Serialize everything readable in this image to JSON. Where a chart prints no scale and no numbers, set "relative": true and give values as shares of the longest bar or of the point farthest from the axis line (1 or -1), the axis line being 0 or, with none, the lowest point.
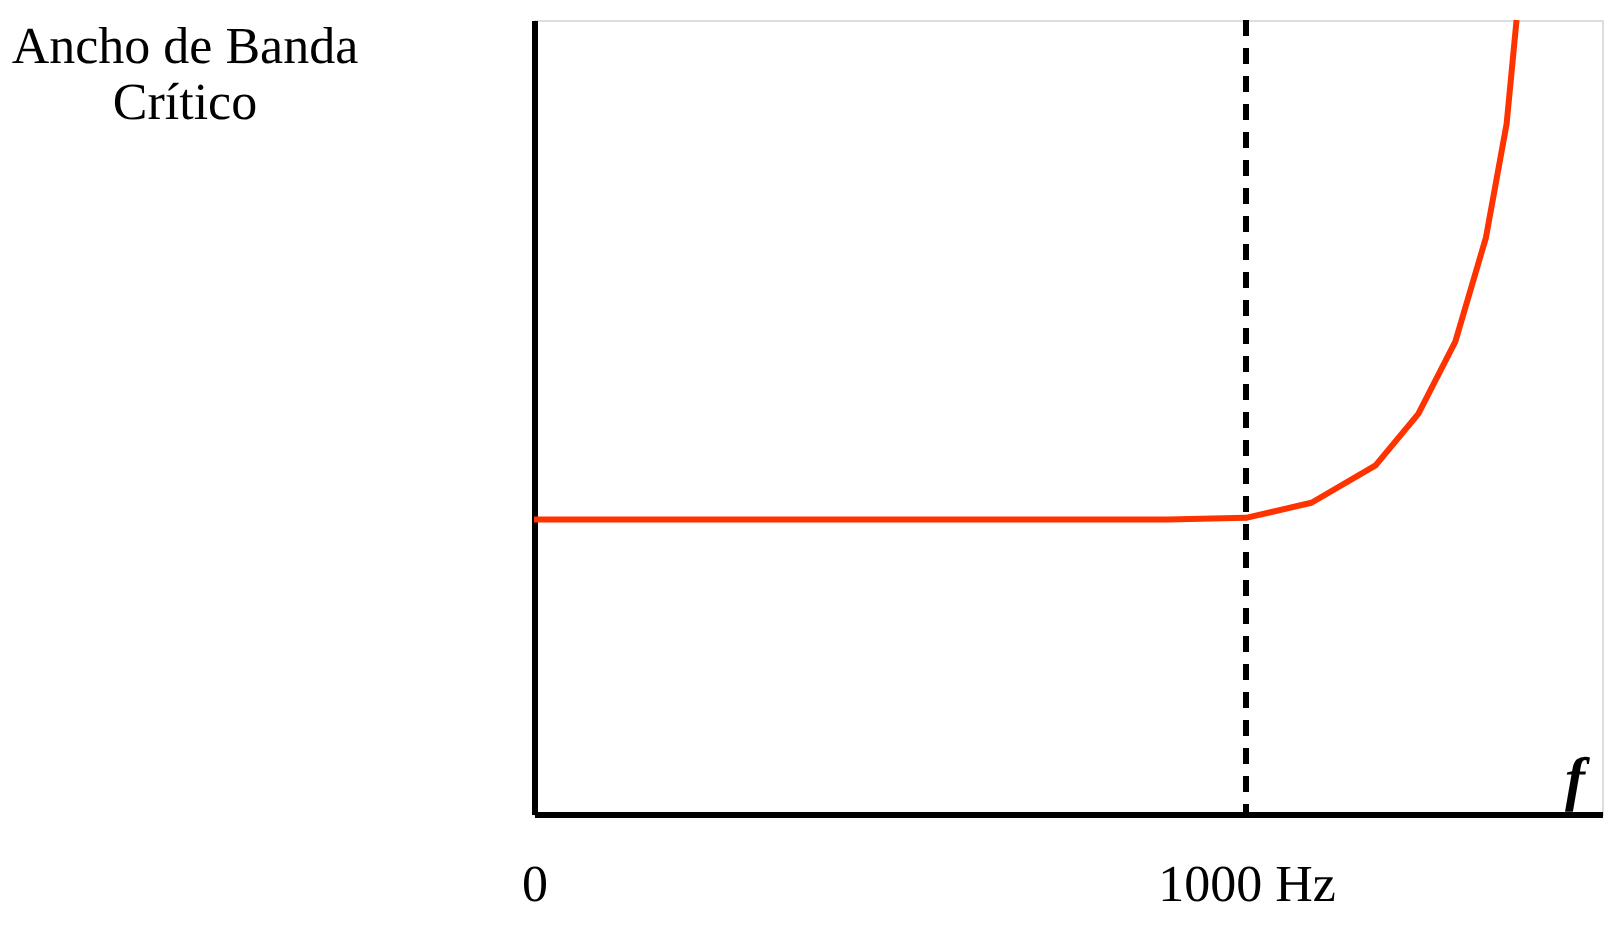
{
  "chart_data": {
    "type": "line",
    "relative": true,
    "xlabel": "f",
    "ylabel": "Ancho de Banda\nCrítico",
    "x": [
      0,
      890,
      1000,
      1092,
      1182,
      1242,
      1294,
      1337,
      1366,
      1380
    ],
    "series": [
      {
        "color": "#ff3300",
        "values": [
          0.371,
          0.371,
          0.373,
          0.392,
          0.439,
          0.504,
          0.595,
          0.726,
          0.869,
          1
        ]
      }
    ],
    "xlim": [
      0,
      1500
    ],
    "xticks": [
      0,
      {
        "value": 1000,
        "label": "1000 Hz"
      }
    ],
    "ref_lines": [
      {
        "axis": "x",
        "value": 1000,
        "color": "#000000",
        "line_style": "dashed"
      }
    ],
    "grid": false,
    "marker": "none",
    "line_style": "solid"
  }
}
